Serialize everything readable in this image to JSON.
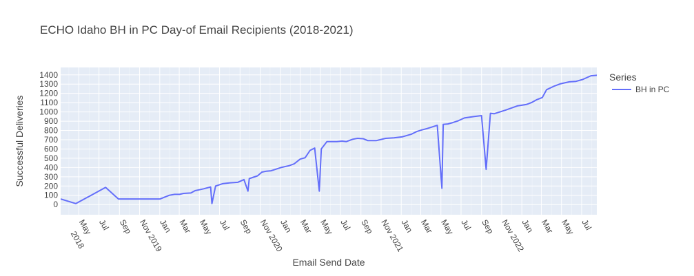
{
  "chart_data": {
    "type": "line",
    "title": "ECHO Idaho BH in PC Day-of Email Recipients (2018-2021)",
    "xlabel": "Email Send Date",
    "ylabel": "Successful Deliveries",
    "legend_title": "Series",
    "legend_position": "top-right",
    "grid": true,
    "ylim": [
      -110,
      1480
    ],
    "y_ticks": [
      0,
      100,
      200,
      300,
      400,
      500,
      600,
      700,
      800,
      900,
      1000,
      1100,
      1200,
      1300,
      1400
    ],
    "x_range": [
      "2018-03-07",
      "2022-08-16"
    ],
    "x_ticks": [
      {
        "date": "2018-05-01",
        "label": "May",
        "sublabel": "2018"
      },
      {
        "date": "2018-07-01",
        "label": "Jul",
        "sublabel": ""
      },
      {
        "date": "2018-09-01",
        "label": "Sep",
        "sublabel": ""
      },
      {
        "date": "2018-11-01",
        "label": "Nov 2019",
        "sublabel": ""
      },
      {
        "date": "2019-01-01",
        "label": "Jan",
        "sublabel": ""
      },
      {
        "date": "2019-03-01",
        "label": "Mar",
        "sublabel": ""
      },
      {
        "date": "2019-05-01",
        "label": "May",
        "sublabel": ""
      },
      {
        "date": "2019-07-01",
        "label": "Jul",
        "sublabel": ""
      },
      {
        "date": "2019-09-01",
        "label": "Sep",
        "sublabel": ""
      },
      {
        "date": "2019-11-01",
        "label": "Nov 2020",
        "sublabel": ""
      },
      {
        "date": "2020-01-01",
        "label": "Jan",
        "sublabel": ""
      },
      {
        "date": "2020-03-01",
        "label": "Mar",
        "sublabel": ""
      },
      {
        "date": "2020-05-01",
        "label": "May",
        "sublabel": ""
      },
      {
        "date": "2020-07-01",
        "label": "Jul",
        "sublabel": ""
      },
      {
        "date": "2020-09-01",
        "label": "Sep",
        "sublabel": ""
      },
      {
        "date": "2020-11-01",
        "label": "Nov 2021",
        "sublabel": ""
      },
      {
        "date": "2021-01-01",
        "label": "Jan",
        "sublabel": ""
      },
      {
        "date": "2021-03-01",
        "label": "Mar",
        "sublabel": ""
      },
      {
        "date": "2021-05-01",
        "label": "May",
        "sublabel": ""
      },
      {
        "date": "2021-07-01",
        "label": "Jul",
        "sublabel": ""
      },
      {
        "date": "2021-09-01",
        "label": "Sep",
        "sublabel": ""
      },
      {
        "date": "2021-11-01",
        "label": "Nov 2022",
        "sublabel": ""
      },
      {
        "date": "2022-01-01",
        "label": "Jan",
        "sublabel": ""
      },
      {
        "date": "2022-03-01",
        "label": "Mar",
        "sublabel": ""
      },
      {
        "date": "2022-05-01",
        "label": "May",
        "sublabel": ""
      },
      {
        "date": "2022-07-01",
        "label": "Jul",
        "sublabel": ""
      }
    ],
    "series": [
      {
        "name": "BH in PC",
        "color": "#636efa",
        "points": [
          {
            "x": "2018-03-07",
            "y": 60
          },
          {
            "x": "2018-04-22",
            "y": 10
          },
          {
            "x": "2018-07-21",
            "y": 185
          },
          {
            "x": "2018-08-29",
            "y": 60
          },
          {
            "x": "2019-01-02",
            "y": 60
          },
          {
            "x": "2019-01-30",
            "y": 100
          },
          {
            "x": "2019-02-15",
            "y": 110
          },
          {
            "x": "2019-03-02",
            "y": 110
          },
          {
            "x": "2019-03-14",
            "y": 120
          },
          {
            "x": "2019-04-05",
            "y": 125
          },
          {
            "x": "2019-04-18",
            "y": 150
          },
          {
            "x": "2019-05-01",
            "y": 160
          },
          {
            "x": "2019-05-14",
            "y": 170
          },
          {
            "x": "2019-06-04",
            "y": 190
          },
          {
            "x": "2019-06-08",
            "y": 10
          },
          {
            "x": "2019-06-19",
            "y": 200
          },
          {
            "x": "2019-07-10",
            "y": 225
          },
          {
            "x": "2019-08-02",
            "y": 235
          },
          {
            "x": "2019-08-25",
            "y": 240
          },
          {
            "x": "2019-09-13",
            "y": 270
          },
          {
            "x": "2019-09-25",
            "y": 145
          },
          {
            "x": "2019-09-29",
            "y": 280
          },
          {
            "x": "2019-10-24",
            "y": 310
          },
          {
            "x": "2019-11-06",
            "y": 350
          },
          {
            "x": "2019-11-20",
            "y": 360
          },
          {
            "x": "2019-12-04",
            "y": 365
          },
          {
            "x": "2020-01-03",
            "y": 400
          },
          {
            "x": "2020-01-28",
            "y": 420
          },
          {
            "x": "2020-02-12",
            "y": 440
          },
          {
            "x": "2020-03-01",
            "y": 490
          },
          {
            "x": "2020-03-16",
            "y": 505
          },
          {
            "x": "2020-03-31",
            "y": 585
          },
          {
            "x": "2020-04-14",
            "y": 610
          },
          {
            "x": "2020-04-28",
            "y": 145
          },
          {
            "x": "2020-05-04",
            "y": 600
          },
          {
            "x": "2020-05-21",
            "y": 680
          },
          {
            "x": "2020-06-20",
            "y": 680
          },
          {
            "x": "2020-07-06",
            "y": 685
          },
          {
            "x": "2020-07-19",
            "y": 680
          },
          {
            "x": "2020-08-07",
            "y": 705
          },
          {
            "x": "2020-08-22",
            "y": 715
          },
          {
            "x": "2020-09-08",
            "y": 710
          },
          {
            "x": "2020-09-22",
            "y": 690
          },
          {
            "x": "2020-10-17",
            "y": 690
          },
          {
            "x": "2020-11-15",
            "y": 715
          },
          {
            "x": "2020-12-10",
            "y": 720
          },
          {
            "x": "2021-01-03",
            "y": 730
          },
          {
            "x": "2021-02-01",
            "y": 760
          },
          {
            "x": "2021-02-18",
            "y": 790
          },
          {
            "x": "2021-03-04",
            "y": 805
          },
          {
            "x": "2021-03-20",
            "y": 820
          },
          {
            "x": "2021-04-20",
            "y": 855
          },
          {
            "x": "2021-05-04",
            "y": 175
          },
          {
            "x": "2021-05-08",
            "y": 865
          },
          {
            "x": "2021-05-22",
            "y": 870
          },
          {
            "x": "2021-06-06",
            "y": 885
          },
          {
            "x": "2021-06-23",
            "y": 905
          },
          {
            "x": "2021-07-11",
            "y": 935
          },
          {
            "x": "2021-08-10",
            "y": 950
          },
          {
            "x": "2021-09-01",
            "y": 960
          },
          {
            "x": "2021-09-15",
            "y": 380
          },
          {
            "x": "2021-09-28",
            "y": 985
          },
          {
            "x": "2021-10-09",
            "y": 980
          },
          {
            "x": "2021-11-13",
            "y": 1020
          },
          {
            "x": "2021-12-18",
            "y": 1065
          },
          {
            "x": "2022-01-15",
            "y": 1080
          },
          {
            "x": "2022-01-30",
            "y": 1100
          },
          {
            "x": "2022-02-14",
            "y": 1130
          },
          {
            "x": "2022-03-04",
            "y": 1155
          },
          {
            "x": "2022-03-17",
            "y": 1240
          },
          {
            "x": "2022-04-10",
            "y": 1280
          },
          {
            "x": "2022-04-29",
            "y": 1305
          },
          {
            "x": "2022-05-25",
            "y": 1325
          },
          {
            "x": "2022-06-14",
            "y": 1330
          },
          {
            "x": "2022-07-04",
            "y": 1350
          },
          {
            "x": "2022-07-29",
            "y": 1390
          },
          {
            "x": "2022-08-16",
            "y": 1395
          },
          {
            "x": "2022-09-15",
            "y": 1400
          },
          {
            "x": "2022-10-16",
            "y": 1405
          }
        ]
      }
    ]
  }
}
